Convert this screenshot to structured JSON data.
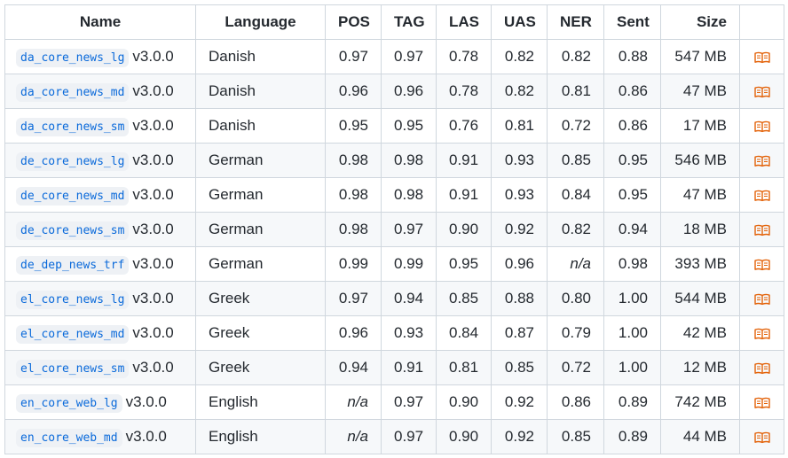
{
  "table": {
    "headers": {
      "name": "Name",
      "language": "Language",
      "pos": "POS",
      "tag": "TAG",
      "las": "LAS",
      "uas": "UAS",
      "ner": "NER",
      "sent": "Sent",
      "size": "Size"
    },
    "rows": [
      {
        "name": "da_core_news_lg",
        "version": "v3.0.0",
        "language": "Danish",
        "pos": "0.97",
        "tag": "0.97",
        "las": "0.78",
        "uas": "0.82",
        "ner": "0.82",
        "sent": "0.88",
        "size": "547 MB"
      },
      {
        "name": "da_core_news_md",
        "version": "v3.0.0",
        "language": "Danish",
        "pos": "0.96",
        "tag": "0.96",
        "las": "0.78",
        "uas": "0.82",
        "ner": "0.81",
        "sent": "0.86",
        "size": "47 MB"
      },
      {
        "name": "da_core_news_sm",
        "version": "v3.0.0",
        "language": "Danish",
        "pos": "0.95",
        "tag": "0.95",
        "las": "0.76",
        "uas": "0.81",
        "ner": "0.72",
        "sent": "0.86",
        "size": "17 MB"
      },
      {
        "name": "de_core_news_lg",
        "version": "v3.0.0",
        "language": "German",
        "pos": "0.98",
        "tag": "0.98",
        "las": "0.91",
        "uas": "0.93",
        "ner": "0.85",
        "sent": "0.95",
        "size": "546 MB"
      },
      {
        "name": "de_core_news_md",
        "version": "v3.0.0",
        "language": "German",
        "pos": "0.98",
        "tag": "0.98",
        "las": "0.91",
        "uas": "0.93",
        "ner": "0.84",
        "sent": "0.95",
        "size": "47 MB"
      },
      {
        "name": "de_core_news_sm",
        "version": "v3.0.0",
        "language": "German",
        "pos": "0.98",
        "tag": "0.97",
        "las": "0.90",
        "uas": "0.92",
        "ner": "0.82",
        "sent": "0.94",
        "size": "18 MB"
      },
      {
        "name": "de_dep_news_trf",
        "version": "v3.0.0",
        "language": "German",
        "pos": "0.99",
        "tag": "0.99",
        "las": "0.95",
        "uas": "0.96",
        "ner": "n/a",
        "sent": "0.98",
        "size": "393 MB"
      },
      {
        "name": "el_core_news_lg",
        "version": "v3.0.0",
        "language": "Greek",
        "pos": "0.97",
        "tag": "0.94",
        "las": "0.85",
        "uas": "0.88",
        "ner": "0.80",
        "sent": "1.00",
        "size": "544 MB"
      },
      {
        "name": "el_core_news_md",
        "version": "v3.0.0",
        "language": "Greek",
        "pos": "0.96",
        "tag": "0.93",
        "las": "0.84",
        "uas": "0.87",
        "ner": "0.79",
        "sent": "1.00",
        "size": "42 MB"
      },
      {
        "name": "el_core_news_sm",
        "version": "v3.0.0",
        "language": "Greek",
        "pos": "0.94",
        "tag": "0.91",
        "las": "0.81",
        "uas": "0.85",
        "ner": "0.72",
        "sent": "1.00",
        "size": "12 MB"
      },
      {
        "name": "en_core_web_lg",
        "version": "v3.0.0",
        "language": "English",
        "pos": "n/a",
        "tag": "0.97",
        "las": "0.90",
        "uas": "0.92",
        "ner": "0.86",
        "sent": "0.89",
        "size": "742 MB"
      },
      {
        "name": "en_core_web_md",
        "version": "v3.0.0",
        "language": "English",
        "pos": "n/a",
        "tag": "0.97",
        "las": "0.90",
        "uas": "0.92",
        "ner": "0.85",
        "sent": "0.89",
        "size": "44 MB"
      }
    ],
    "na_value": "n/a",
    "doc_icon": "book-icon",
    "colors": {
      "border": "#d0d7de",
      "stripe": "#f6f8fa",
      "code_bg": "#eef1f5",
      "code_text": "#0969da",
      "icon": "#e36209"
    }
  }
}
